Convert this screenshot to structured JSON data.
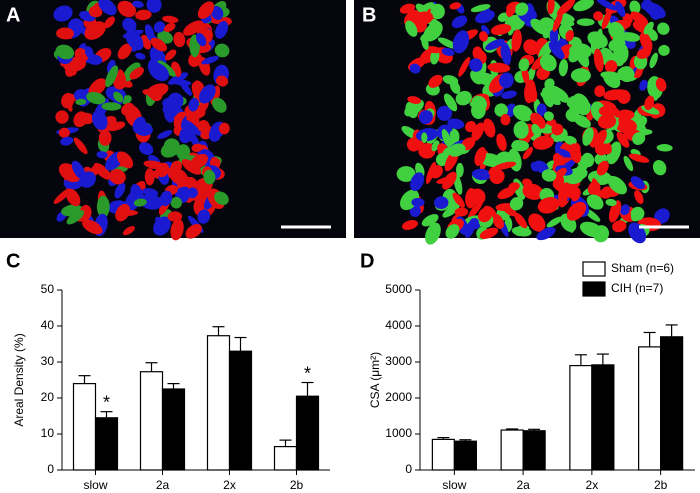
{
  "images": [
    {
      "label": "A"
    },
    {
      "label": "B"
    }
  ],
  "chart_data": [
    {
      "type": "bar",
      "label": "C",
      "y_label": "Areal Density (%)",
      "categories": [
        "slow",
        "2a",
        "2x",
        "2b"
      ],
      "series": [
        {
          "name": "Sham (n=6)",
          "color": "#ffffff",
          "values": [
            24,
            27.3,
            37.3,
            6.5
          ],
          "errors": [
            2.2,
            2.5,
            2.5,
            1.8
          ]
        },
        {
          "name": "CIH (n=7)",
          "color": "#000000",
          "values": [
            14.5,
            22.5,
            33,
            20.5
          ],
          "errors": [
            1.7,
            1.5,
            3.8,
            3.8
          ],
          "annotations": [
            "*",
            null,
            null,
            "*"
          ]
        }
      ],
      "ylim": [
        0,
        50
      ],
      "yticks": [
        0,
        10,
        20,
        30,
        40,
        50
      ]
    },
    {
      "type": "bar",
      "label": "D",
      "y_label": "CSA (μm²)",
      "categories": [
        "slow",
        "2a",
        "2x",
        "2b"
      ],
      "series": [
        {
          "name": "Sham (n=6)",
          "color": "#ffffff",
          "values": [
            850,
            1110,
            2900,
            3420
          ],
          "errors": [
            50,
            30,
            300,
            400
          ]
        },
        {
          "name": "CIH (n=7)",
          "color": "#000000",
          "values": [
            800,
            1090,
            2920,
            3700
          ],
          "errors": [
            40,
            40,
            300,
            330
          ]
        }
      ],
      "ylim": [
        0,
        5000
      ],
      "yticks": [
        0,
        1000,
        2000,
        3000,
        4000,
        5000
      ],
      "legend": "top-right"
    }
  ]
}
